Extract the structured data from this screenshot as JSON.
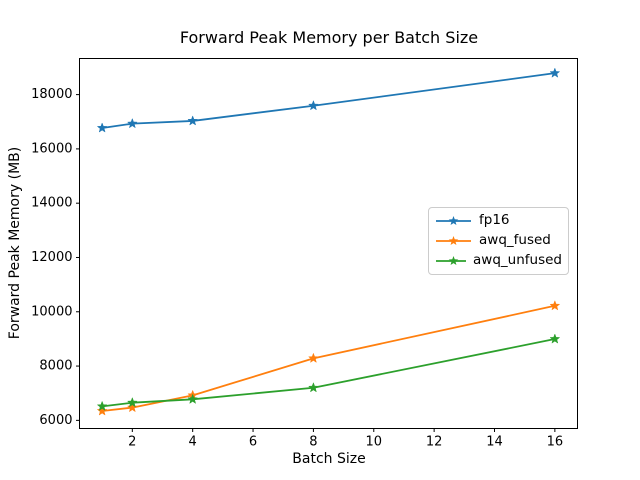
{
  "chart_data": {
    "type": "line",
    "title": "Forward Peak Memory per Batch Size",
    "xlabel": "Batch Size",
    "ylabel": "Forward Peak Memory (MB)",
    "x": [
      1,
      2,
      4,
      8,
      16
    ],
    "series": [
      {
        "name": "fp16",
        "color": "#1f77b4",
        "values": [
          16770,
          16930,
          17030,
          17590,
          18790
        ]
      },
      {
        "name": "awq_fused",
        "color": "#ff7f0e",
        "values": [
          6345,
          6470,
          6920,
          8285,
          10220
        ]
      },
      {
        "name": "awq_unfused",
        "color": "#2ca02c",
        "values": [
          6515,
          6650,
          6775,
          7200,
          8995
        ]
      }
    ],
    "xticks": [
      2,
      4,
      6,
      8,
      10,
      12,
      14,
      16
    ],
    "yticks": [
      6000,
      8000,
      10000,
      12000,
      14000,
      16000,
      18000
    ],
    "xlim": [
      0.25,
      16.75
    ],
    "ylim": [
      5700,
      19330
    ],
    "grid": false,
    "marker": "star",
    "legend_position": "center right",
    "legend_labels": [
      "fp16",
      "awq_fused",
      "awq_unfused"
    ]
  }
}
